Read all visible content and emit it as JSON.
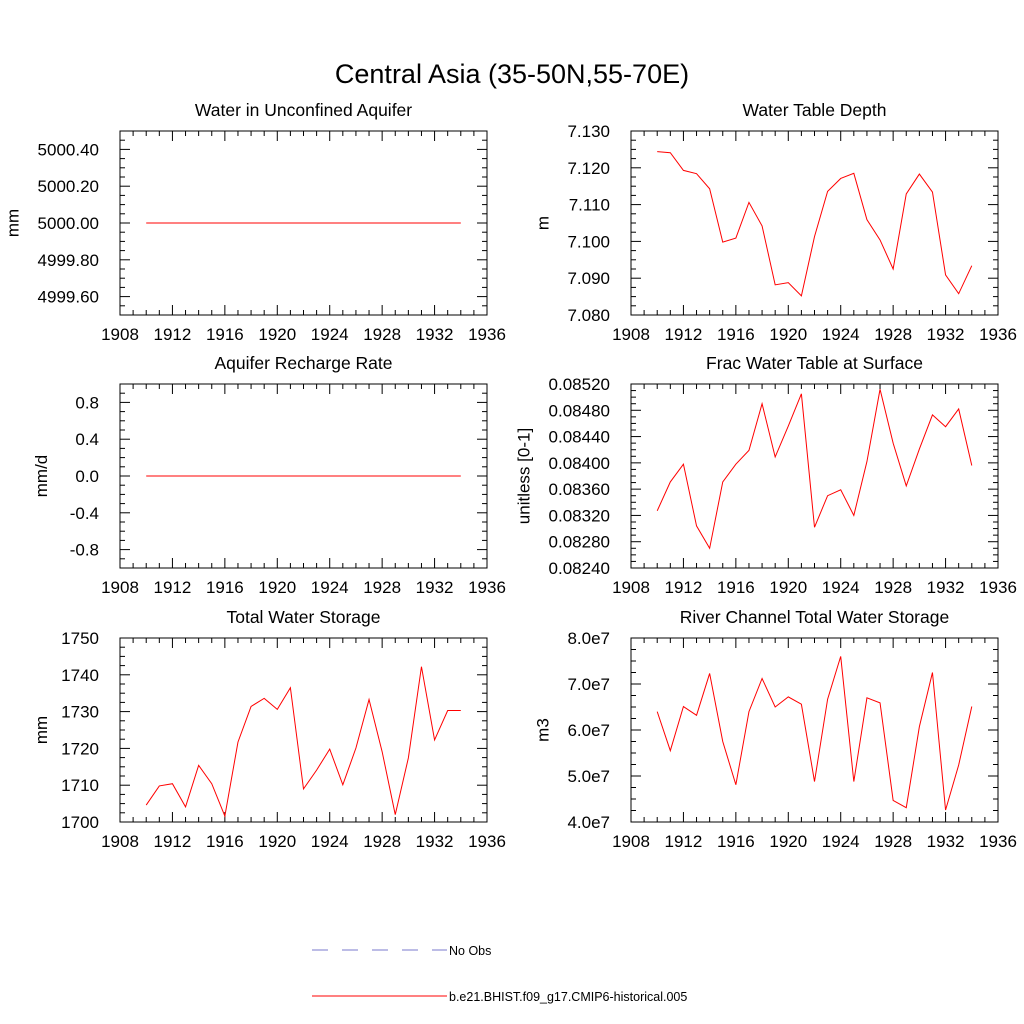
{
  "title": "Central Asia (35-50N,55-70E)",
  "colors": {
    "model": "#ff0000",
    "obs": "#7a7acc"
  },
  "legend": {
    "obs_label": "No Obs",
    "model_label": "b.e21.BHIST.f09_g17.CMIP6-historical.005"
  },
  "chart_data": [
    {
      "type": "line",
      "title": "Water in Unconfined Aquifer",
      "ylabel": "mm",
      "xlim": [
        1908,
        1936
      ],
      "ylim": [
        4999.5,
        5000.5
      ],
      "xticks": [
        1908,
        1912,
        1916,
        1920,
        1924,
        1928,
        1932,
        1936
      ],
      "yticks": [
        4999.6,
        4999.8,
        5000.0,
        5000.2,
        5000.4
      ],
      "ytick_labels": [
        "4999.60",
        "4999.80",
        "5000.00",
        "5000.20",
        "5000.40"
      ],
      "x": [
        1910,
        1911,
        1912,
        1913,
        1914,
        1915,
        1916,
        1917,
        1918,
        1919,
        1920,
        1921,
        1922,
        1923,
        1924,
        1925,
        1926,
        1927,
        1928,
        1929,
        1930,
        1931,
        1932,
        1933,
        1934
      ],
      "values": [
        5000,
        5000,
        5000,
        5000,
        5000,
        5000,
        5000,
        5000,
        5000,
        5000,
        5000,
        5000,
        5000,
        5000,
        5000,
        5000,
        5000,
        5000,
        5000,
        5000,
        5000,
        5000,
        5000,
        5000,
        5000
      ]
    },
    {
      "type": "line",
      "title": "Water Table Depth",
      "ylabel": "m",
      "xlim": [
        1908,
        1936
      ],
      "ylim": [
        7.08,
        7.13
      ],
      "xticks": [
        1908,
        1912,
        1916,
        1920,
        1924,
        1928,
        1932,
        1936
      ],
      "yticks": [
        7.08,
        7.09,
        7.1,
        7.11,
        7.12,
        7.13
      ],
      "ytick_labels": [
        "7.080",
        "7.090",
        "7.100",
        "7.110",
        "7.120",
        "7.130"
      ],
      "x": [
        1910,
        1911,
        1912,
        1913,
        1914,
        1915,
        1916,
        1917,
        1918,
        1919,
        1920,
        1921,
        1922,
        1923,
        1924,
        1925,
        1926,
        1927,
        1928,
        1929,
        1930,
        1931,
        1932,
        1933,
        1934
      ],
      "values": [
        7.1244,
        7.1241,
        7.1193,
        7.1184,
        7.1143,
        7.0998,
        7.1009,
        7.1106,
        7.1042,
        7.0882,
        7.0888,
        7.0852,
        7.1013,
        7.1136,
        7.1171,
        7.1185,
        7.1059,
        7.1004,
        7.0925,
        7.1129,
        7.1183,
        7.1134,
        7.0909,
        7.0858,
        7.0934
      ]
    },
    {
      "type": "line",
      "title": "Aquifer Recharge Rate",
      "ylabel": "mm/d",
      "xlim": [
        1908,
        1936
      ],
      "ylim": [
        -1.0,
        1.0
      ],
      "xticks": [
        1908,
        1912,
        1916,
        1920,
        1924,
        1928,
        1932,
        1936
      ],
      "yticks": [
        -0.8,
        -0.4,
        0.0,
        0.4,
        0.8
      ],
      "ytick_labels": [
        "-0.8",
        "-0.4",
        "0.0",
        "0.4",
        "0.8"
      ],
      "x": [
        1910,
        1911,
        1912,
        1913,
        1914,
        1915,
        1916,
        1917,
        1918,
        1919,
        1920,
        1921,
        1922,
        1923,
        1924,
        1925,
        1926,
        1927,
        1928,
        1929,
        1930,
        1931,
        1932,
        1933,
        1934
      ],
      "values": [
        0,
        0,
        0,
        0,
        0,
        0,
        0,
        0,
        0,
        0,
        0,
        0,
        0,
        0,
        0,
        0,
        0,
        0,
        0,
        0,
        0,
        0,
        0,
        0,
        0
      ]
    },
    {
      "type": "line",
      "title": "Frac Water Table at Surface",
      "ylabel": "unitless [0-1]",
      "xlim": [
        1908,
        1936
      ],
      "ylim": [
        0.0824,
        0.0852
      ],
      "xticks": [
        1908,
        1912,
        1916,
        1920,
        1924,
        1928,
        1932,
        1936
      ],
      "yticks": [
        0.0824,
        0.0828,
        0.0832,
        0.0836,
        0.084,
        0.0844,
        0.0848,
        0.0852
      ],
      "ytick_labels": [
        "0.08240",
        "0.08280",
        "0.08320",
        "0.08360",
        "0.08400",
        "0.08440",
        "0.08480",
        "0.08520"
      ],
      "x": [
        1910,
        1911,
        1912,
        1913,
        1914,
        1915,
        1916,
        1917,
        1918,
        1919,
        1920,
        1921,
        1922,
        1923,
        1924,
        1925,
        1926,
        1927,
        1928,
        1929,
        1930,
        1931,
        1932,
        1933,
        1934
      ],
      "values": [
        0.08327,
        0.08371,
        0.08398,
        0.08304,
        0.0827,
        0.08371,
        0.08398,
        0.08419,
        0.0849,
        0.08409,
        0.08456,
        0.08505,
        0.08302,
        0.0835,
        0.08359,
        0.0832,
        0.08402,
        0.08512,
        0.0843,
        0.08365,
        0.08421,
        0.08473,
        0.08455,
        0.08482,
        0.08396
      ]
    },
    {
      "type": "line",
      "title": "Total Water Storage",
      "ylabel": "mm",
      "xlim": [
        1908,
        1936
      ],
      "ylim": [
        1700,
        1750
      ],
      "xticks": [
        1908,
        1912,
        1916,
        1920,
        1924,
        1928,
        1932,
        1936
      ],
      "yticks": [
        1700,
        1710,
        1720,
        1730,
        1740,
        1750
      ],
      "ytick_labels": [
        "1700",
        "1710",
        "1720",
        "1730",
        "1740",
        "1750"
      ],
      "x": [
        1910,
        1911,
        1912,
        1913,
        1914,
        1915,
        1916,
        1917,
        1918,
        1919,
        1920,
        1921,
        1922,
        1923,
        1924,
        1925,
        1926,
        1927,
        1928,
        1929,
        1930,
        1931,
        1932,
        1933,
        1934
      ],
      "values": [
        1704.6,
        1709.8,
        1710.4,
        1704.1,
        1715.4,
        1710.4,
        1701.6,
        1721.7,
        1731.4,
        1733.6,
        1730.6,
        1736.5,
        1709.0,
        1714.1,
        1719.8,
        1710.1,
        1720.1,
        1733.3,
        1719.1,
        1702.0,
        1717.4,
        1742.2,
        1722.3,
        1730.3,
        1730.3
      ]
    },
    {
      "type": "line",
      "title": "River Channel Total Water Storage",
      "ylabel": "m3",
      "xlim": [
        1908,
        1936
      ],
      "ylim": [
        40000000,
        80000000
      ],
      "xticks": [
        1908,
        1912,
        1916,
        1920,
        1924,
        1928,
        1932,
        1936
      ],
      "yticks": [
        40000000,
        50000000,
        60000000,
        70000000,
        80000000
      ],
      "ytick_labels": [
        "4.0e7",
        "5.0e7",
        "6.0e7",
        "7.0e7",
        "8.0e7"
      ],
      "x": [
        1910,
        1911,
        1912,
        1913,
        1914,
        1915,
        1916,
        1917,
        1918,
        1919,
        1920,
        1921,
        1922,
        1923,
        1924,
        1925,
        1926,
        1927,
        1928,
        1929,
        1930,
        1931,
        1932,
        1933,
        1934
      ],
      "values": [
        64000000,
        55500000,
        65100000,
        63200000,
        72300000,
        57500000,
        48100000,
        64000000,
        71200000,
        65000000,
        67200000,
        65600000,
        48800000,
        66700000,
        76000000,
        48800000,
        67000000,
        65900000,
        44700000,
        43100000,
        60700000,
        72500000,
        42600000,
        52400000,
        65100000
      ]
    }
  ]
}
